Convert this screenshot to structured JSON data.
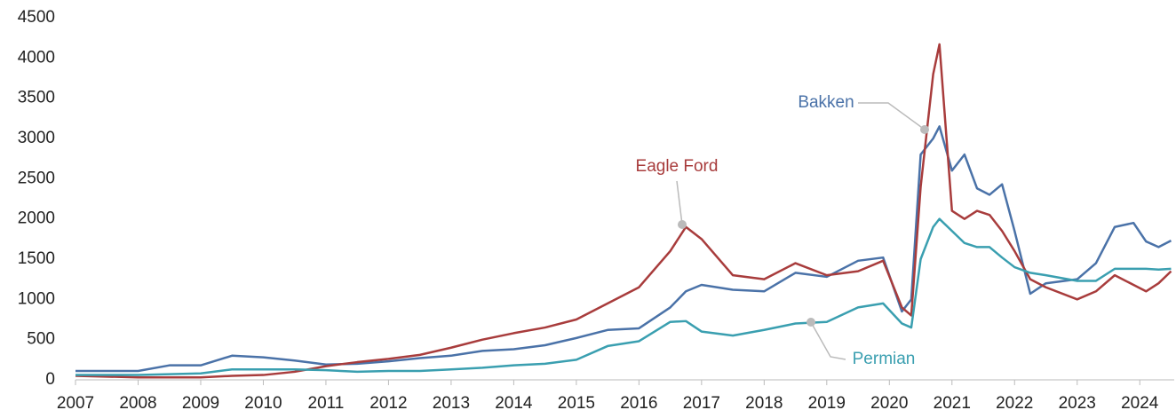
{
  "chart_data": {
    "type": "line",
    "x": [
      2007,
      2008,
      2008.5,
      2009,
      2009.5,
      2010,
      2010.5,
      2011,
      2011.5,
      2012,
      2012.5,
      2013,
      2013.5,
      2014,
      2014.5,
      2015,
      2015.5,
      2016,
      2016.5,
      2016.75,
      2017,
      2017.5,
      2018,
      2018.5,
      2019,
      2019.5,
      2019.9,
      2020.2,
      2020.35,
      2020.5,
      2020.7,
      2020.8,
      2021,
      2021.2,
      2021.4,
      2021.6,
      2021.8,
      2022,
      2022.25,
      2022.5,
      2023,
      2023.3,
      2023.6,
      2023.9,
      2024.1,
      2024.3,
      2024.5
    ],
    "series": [
      {
        "name": "Bakken",
        "color": "#4a72a8",
        "values": [
          110,
          110,
          180,
          180,
          300,
          280,
          240,
          190,
          200,
          230,
          270,
          300,
          360,
          380,
          430,
          520,
          620,
          640,
          900,
          1100,
          1180,
          1120,
          1100,
          1330,
          1280,
          1480,
          1520,
          850,
          1000,
          2800,
          3000,
          3150,
          2600,
          2800,
          2380,
          2300,
          2430,
          1850,
          1070,
          1200,
          1250,
          1450,
          1900,
          1950,
          1720,
          1650,
          1730
        ]
      },
      {
        "name": "Eagle Ford",
        "color": "#a83c3c",
        "values": [
          50,
          30,
          30,
          30,
          50,
          60,
          100,
          170,
          220,
          260,
          310,
          400,
          500,
          580,
          650,
          750,
          950,
          1150,
          1600,
          1900,
          1750,
          1300,
          1250,
          1450,
          1300,
          1350,
          1480,
          900,
          800,
          2400,
          3800,
          4170,
          2100,
          2000,
          2100,
          2050,
          1850,
          1600,
          1250,
          1150,
          1000,
          1100,
          1300,
          1180,
          1100,
          1200,
          1350
        ]
      },
      {
        "name": "Permian",
        "color": "#3a9fb0",
        "values": [
          60,
          60,
          70,
          80,
          130,
          130,
          130,
          120,
          100,
          110,
          110,
          130,
          150,
          180,
          200,
          250,
          420,
          480,
          720,
          730,
          600,
          550,
          620,
          700,
          720,
          900,
          950,
          700,
          650,
          1500,
          1900,
          2000,
          1850,
          1700,
          1650,
          1650,
          1520,
          1400,
          1330,
          1300,
          1230,
          1230,
          1380,
          1380,
          1380,
          1370,
          1380
        ]
      }
    ],
    "xlim": [
      2007,
      2024.55
    ],
    "xticks": [
      2007,
      2008,
      2009,
      2010,
      2011,
      2012,
      2013,
      2014,
      2015,
      2016,
      2017,
      2018,
      2019,
      2020,
      2021,
      2022,
      2023,
      2024
    ],
    "ylim": [
      0,
      4500
    ],
    "yticks": [
      0,
      500,
      1000,
      1500,
      2000,
      2500,
      3000,
      3500,
      4000,
      4500
    ],
    "grid": false
  }
}
